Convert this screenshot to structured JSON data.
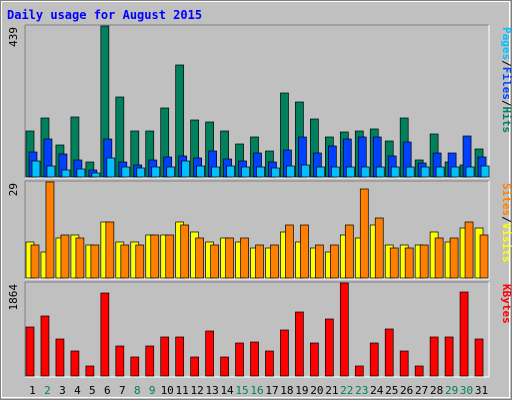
{
  "chart_data": {
    "type": "bar",
    "title": "Daily usage for August 2015",
    "days": [
      "1",
      "2",
      "3",
      "4",
      "5",
      "6",
      "7",
      "8",
      "9",
      "10",
      "11",
      "12",
      "13",
      "14",
      "15",
      "16",
      "17",
      "18",
      "19",
      "20",
      "21",
      "22",
      "23",
      "24",
      "25",
      "26",
      "27",
      "28",
      "29",
      "30",
      "31"
    ],
    "weekend_days": [
      2,
      8,
      9,
      15,
      16,
      22,
      23,
      29,
      30
    ],
    "panels": [
      {
        "id": "hits",
        "axis_max_label": "439",
        "ymax": 439,
        "right_labels": [
          "Pages",
          "/",
          "Files",
          "/",
          "Hits"
        ],
        "right_label_colors": [
          "#00c0ff",
          "#000000",
          "#0040ff",
          "#000000",
          "#008060"
        ],
        "series": [
          {
            "name": "Hits",
            "color": "#00805c",
            "values": [
              133,
              171,
              92,
              174,
              43,
              439,
              233,
              133,
              133,
              201,
              325,
              167,
              161,
              133,
              95,
              115,
              76,
              245,
              218,
              169,
              115,
              131,
              133,
              140,
              106,
              171,
              48,
              124,
              44,
              36,
              81
            ]
          },
          {
            "name": "Files",
            "color": "#0040ff",
            "values": [
              74,
              111,
              66,
              48,
              20,
              111,
              44,
              36,
              50,
              58,
              62,
              56,
              76,
              52,
              46,
              70,
              43,
              78,
              117,
              69,
              91,
              111,
              115,
              115,
              60,
              101,
              42,
              71,
              70,
              120,
              59
            ]
          },
          {
            "name": "Pages",
            "color": "#00c0ff",
            "values": [
              46,
              31,
              20,
              22,
              11,
              54,
              28,
              25,
              29,
              30,
              47,
              33,
              28,
              33,
              28,
              28,
              25,
              33,
              34,
              28,
              28,
              28,
              28,
              28,
              28,
              28,
              28,
              28,
              28,
              28,
              33
            ]
          }
        ]
      },
      {
        "id": "visits",
        "axis_max_label": "29",
        "ymax": 29,
        "right_labels": [
          "Sites",
          "/",
          "Visits"
        ],
        "right_label_colors": [
          "#ff8000",
          "#000000",
          "#ffff00"
        ],
        "series": [
          {
            "name": "Visits",
            "color": "#ffff00",
            "values": [
              11,
              8,
              12,
              13,
              10,
              17,
              11,
              11,
              13,
              13,
              17,
              14,
              11,
              12,
              11,
              9,
              9,
              14,
              11,
              9,
              8,
              13,
              12,
              16,
              10,
              10,
              10,
              14,
              11,
              15,
              15
            ]
          },
          {
            "name": "Sites",
            "color": "#ff8000",
            "values": [
              10,
              29,
              13,
              12,
              10,
              17,
              10,
              10,
              13,
              13,
              16,
              12,
              10,
              12,
              12,
              10,
              10,
              16,
              16,
              10,
              10,
              16,
              27,
              18,
              9,
              9,
              10,
              12,
              12,
              17,
              13
            ]
          }
        ]
      },
      {
        "id": "kbytes",
        "axis_max_label": "1864",
        "ymax": 1864,
        "right_labels": [
          "KBytes"
        ],
        "right_label_colors": [
          "#ff0000"
        ],
        "series": [
          {
            "name": "KBytes",
            "color": "#ff0000",
            "values": [
              979,
              1204,
              744,
              494,
              207,
              1656,
              604,
              385,
              604,
              775,
              775,
              385,
              899,
              385,
              654,
              680,
              494,
              925,
              1291,
              654,
              1152,
              1864,
              192,
              654,
              949,
              494,
              192,
              775,
              775,
              1684,
              744
            ]
          }
        ]
      }
    ]
  }
}
